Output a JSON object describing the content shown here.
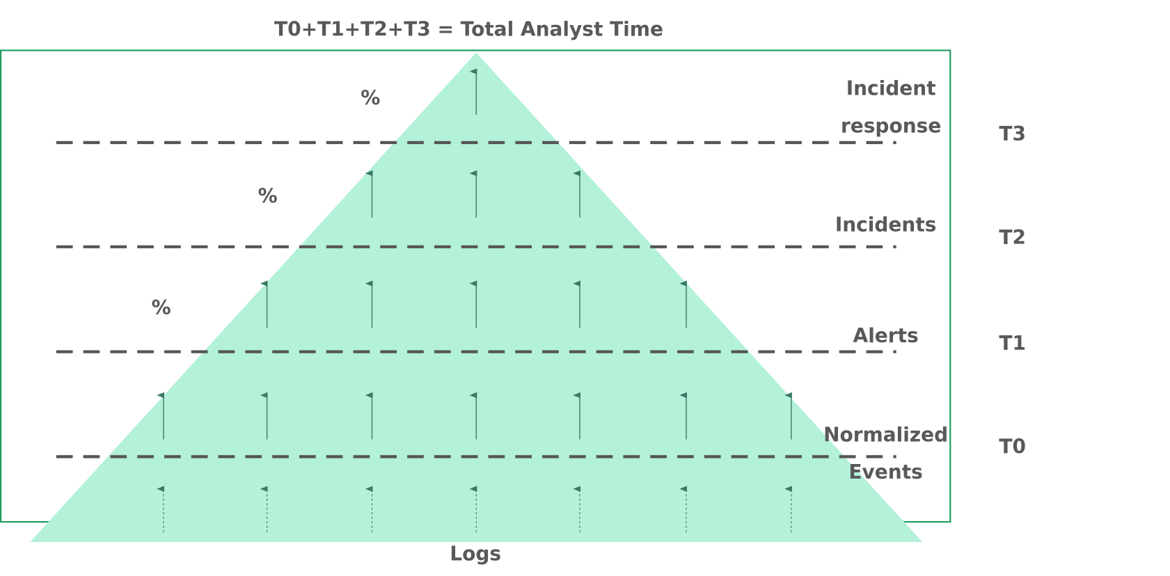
{
  "title": "T0+T1+T2+T3  = Total Analyst Time",
  "layers": [
    {
      "label": [
        "Incident",
        "response"
      ],
      "tier": "T3",
      "percent": "%"
    },
    {
      "label": [
        "Incidents"
      ],
      "tier": "T2",
      "percent": "%"
    },
    {
      "label": [
        "Alerts"
      ],
      "tier": "T1",
      "percent": "%"
    },
    {
      "label": [
        "Normalized",
        "Events"
      ],
      "tier": "T0"
    }
  ],
  "base_label": "Logs"
}
